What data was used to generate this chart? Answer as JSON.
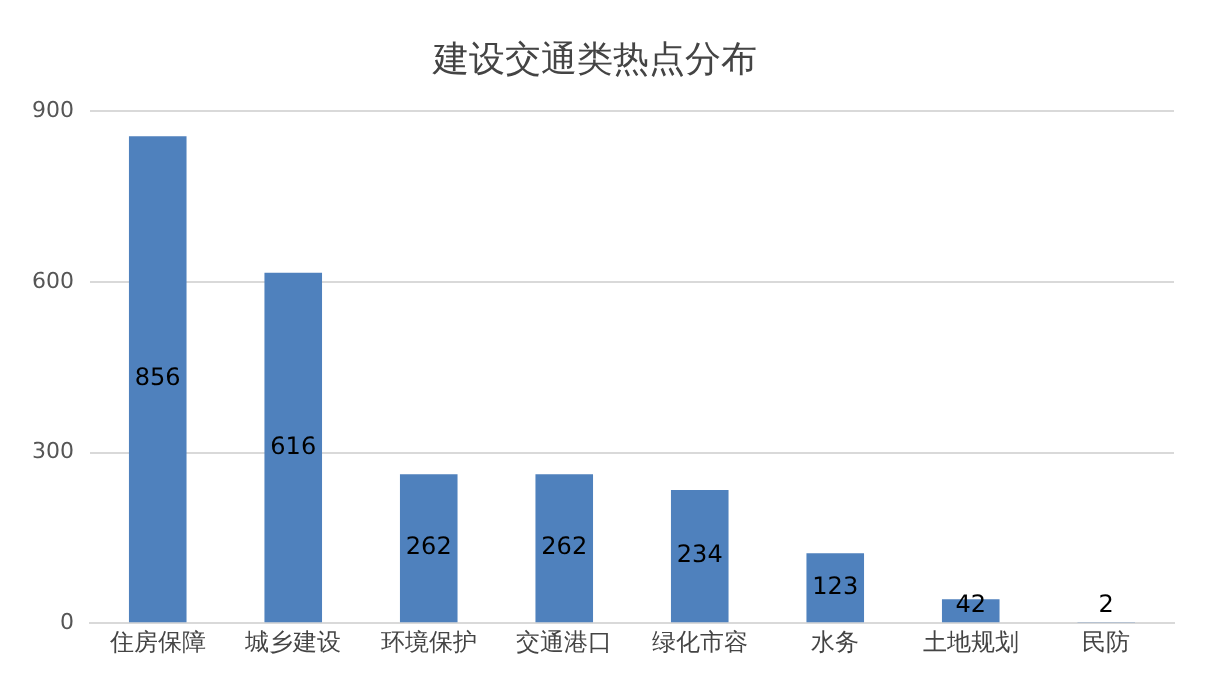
{
  "chart_data": {
    "type": "bar",
    "title": "建设交通类热点分布",
    "categories": [
      "住房保障",
      "城乡建设",
      "环境保护",
      "交通港口",
      "绿化市容",
      "水务",
      "土地规划",
      "民防"
    ],
    "values": [
      856,
      616,
      262,
      262,
      234,
      123,
      42,
      2
    ],
    "color": "#4f81bd",
    "ylim": [
      0,
      900
    ],
    "yticks": [
      0,
      300,
      600,
      900
    ],
    "grid": "y",
    "data_labels": true,
    "legend": false
  }
}
